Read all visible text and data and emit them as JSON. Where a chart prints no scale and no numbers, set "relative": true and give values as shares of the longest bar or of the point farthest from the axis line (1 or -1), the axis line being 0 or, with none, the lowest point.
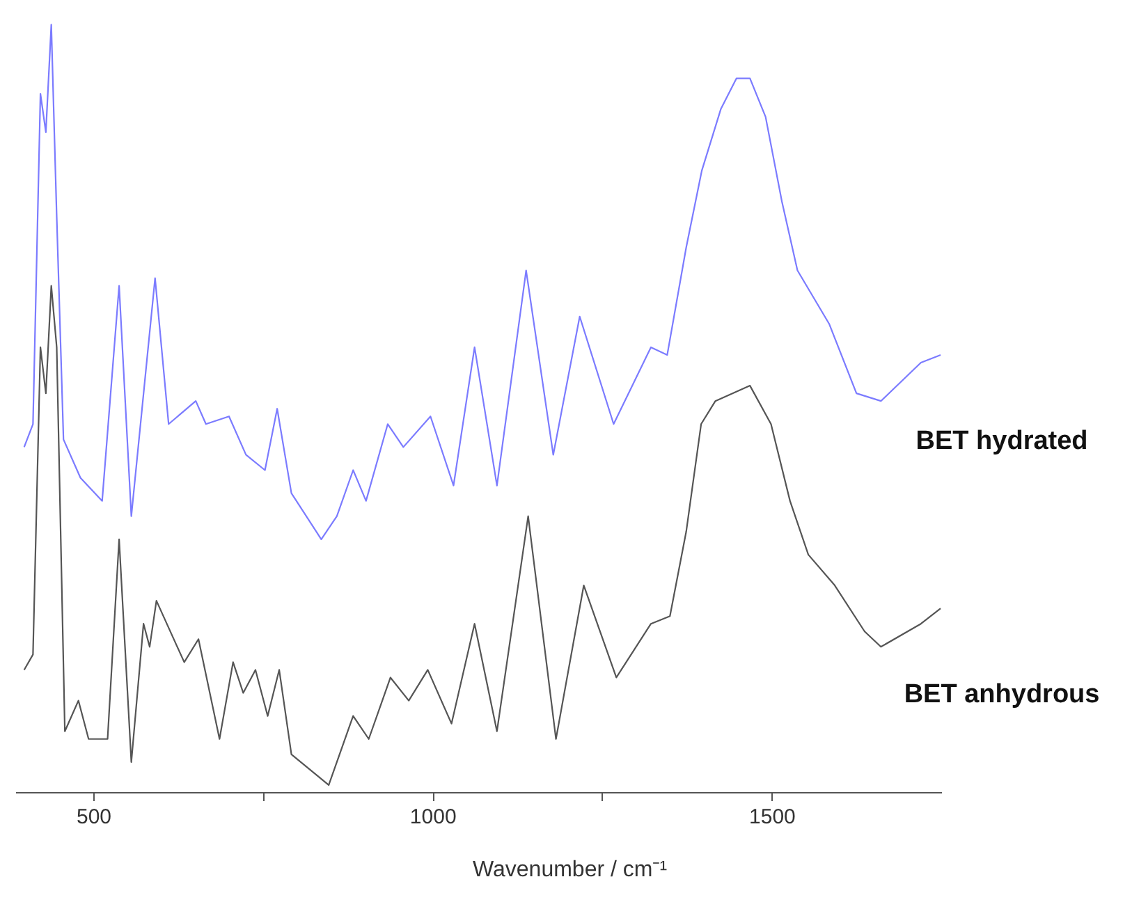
{
  "chart_data": {
    "type": "line",
    "relative": true,
    "xlabel": "Wavenumber  / cm⁻¹",
    "xlim": [
      385,
      1750
    ],
    "xticks": [
      500,
      {
        "value": 750,
        "label": null
      },
      1000,
      {
        "value": 1250,
        "label": null
      },
      1500
    ],
    "grid": false,
    "legend": false,
    "marker": "none",
    "line_style": "solid",
    "series": [
      {
        "name": "BET hydrated",
        "color": "#7b7bff",
        "x": [
          397,
          410,
          421,
          429,
          437,
          445,
          455,
          480,
          512,
          537,
          555,
          590,
          610,
          650,
          665,
          699,
          724,
          752,
          770,
          791,
          835,
          858,
          882,
          901,
          933,
          956,
          996,
          1030,
          1061,
          1094,
          1137,
          1177,
          1216,
          1266,
          1321,
          1345,
          1373,
          1396,
          1424,
          1447,
          1467,
          1490,
          1514,
          1537,
          1584,
          1624,
          1660,
          1719,
          1748
        ],
        "values": [
          0.45,
          0.48,
          0.91,
          0.86,
          1.0,
          0.75,
          0.46,
          0.41,
          0.38,
          0.66,
          0.36,
          0.67,
          0.48,
          0.51,
          0.48,
          0.49,
          0.44,
          0.42,
          0.5,
          0.39,
          0.33,
          0.36,
          0.42,
          0.38,
          0.48,
          0.45,
          0.49,
          0.4,
          0.58,
          0.4,
          0.68,
          0.44,
          0.62,
          0.48,
          0.58,
          0.57,
          0.71,
          0.81,
          0.89,
          0.93,
          0.93,
          0.88,
          0.77,
          0.68,
          0.61,
          0.52,
          0.51,
          0.56,
          0.57
        ]
      },
      {
        "name": "BET anhydrous",
        "color": "#555555",
        "x": [
          397,
          410,
          421,
          429,
          437,
          445,
          457,
          477,
          492,
          520,
          537,
          555,
          573,
          582,
          592,
          633,
          654,
          685,
          705,
          720,
          738,
          756,
          773,
          791,
          846,
          882,
          905,
          937,
          964,
          992,
          1027,
          1061,
          1094,
          1140,
          1181,
          1222,
          1270,
          1321,
          1349,
          1373,
          1395,
          1416,
          1467,
          1498,
          1526,
          1553,
          1592,
          1636,
          1660,
          1719,
          1748
        ],
        "values": [
          0.16,
          0.18,
          0.58,
          0.52,
          0.66,
          0.58,
          0.08,
          0.12,
          0.07,
          0.07,
          0.33,
          0.04,
          0.22,
          0.19,
          0.25,
          0.17,
          0.2,
          0.07,
          0.17,
          0.13,
          0.16,
          0.1,
          0.16,
          0.05,
          0.01,
          0.1,
          0.07,
          0.15,
          0.12,
          0.16,
          0.09,
          0.22,
          0.08,
          0.36,
          0.07,
          0.27,
          0.15,
          0.22,
          0.23,
          0.34,
          0.48,
          0.51,
          0.53,
          0.48,
          0.38,
          0.31,
          0.27,
          0.21,
          0.19,
          0.22,
          0.24
        ]
      }
    ]
  }
}
